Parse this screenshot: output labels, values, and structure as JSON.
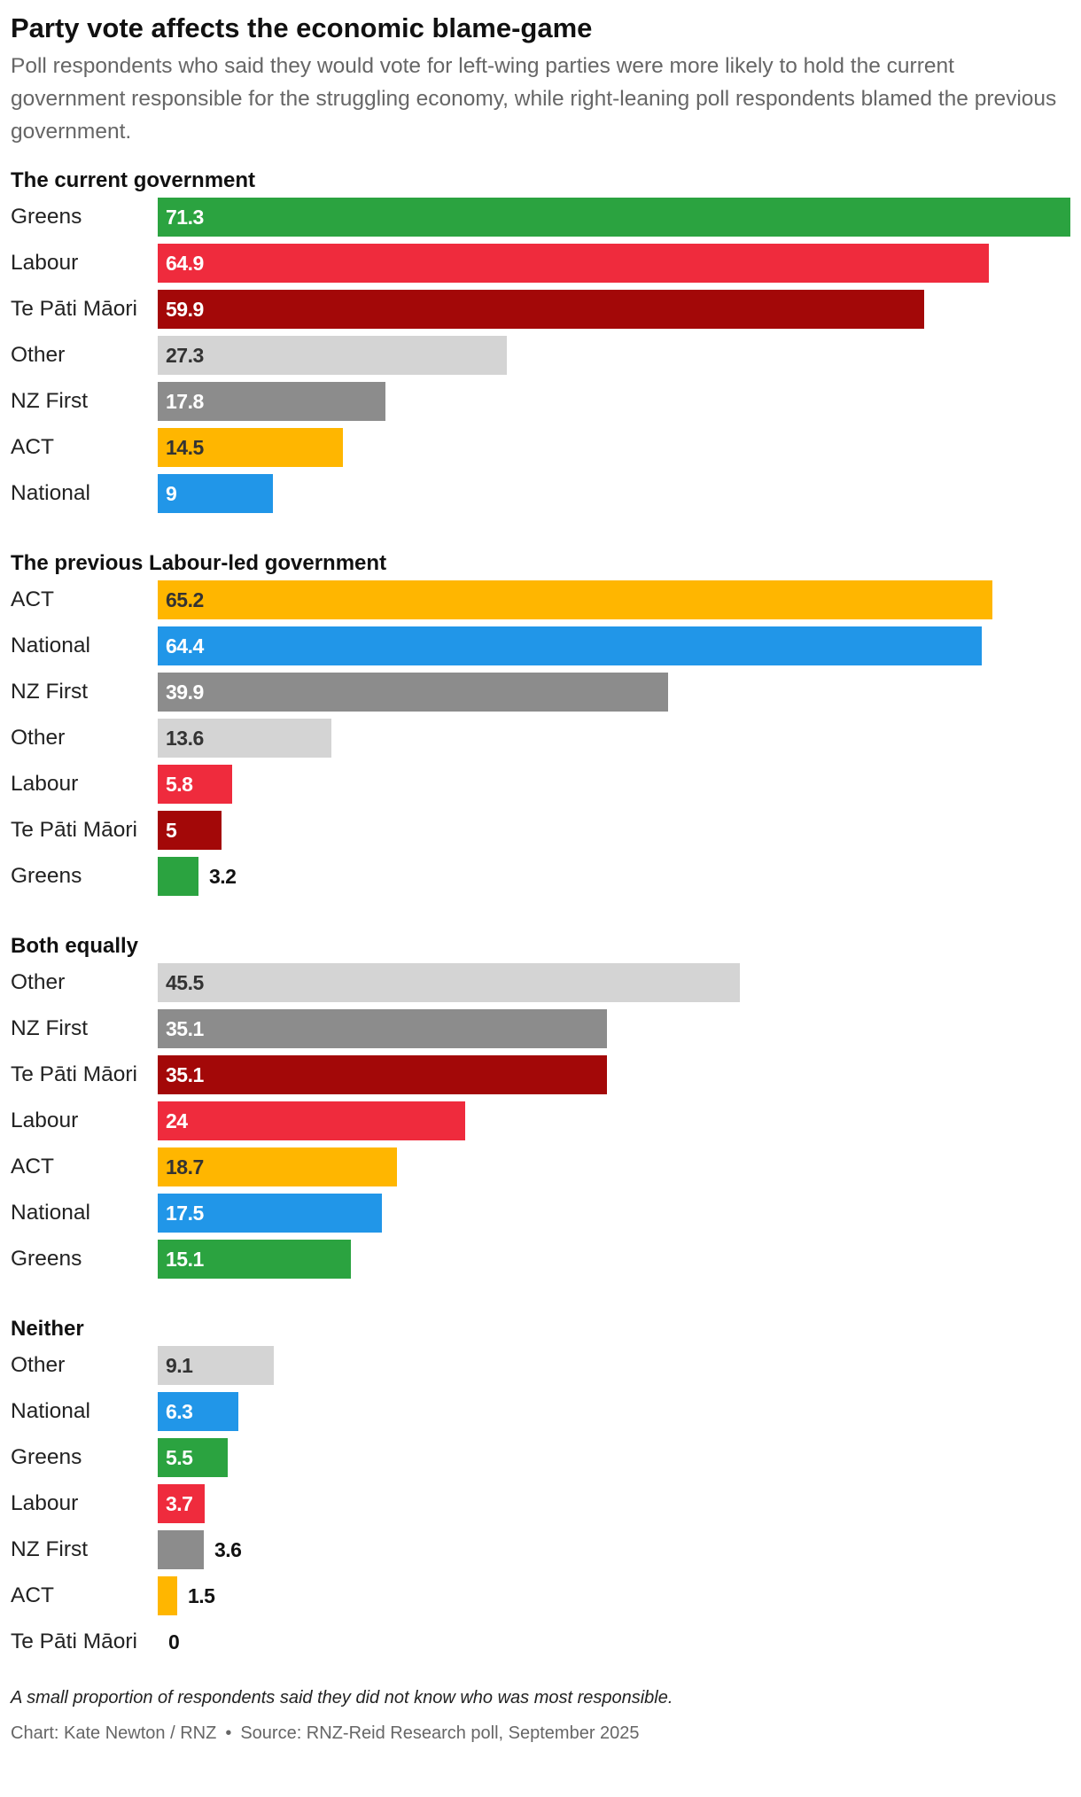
{
  "title": "Party vote affects the economic blame-game",
  "subtitle": "Poll respondents who said they would vote for left-wing parties were more likely to hold the current government responsible for the struggling economy, while right-leaning poll respondents blamed the previous government.",
  "note": "A small proportion of respondents said they did not know who was most responsible.",
  "footer": {
    "chart_credit": "Chart: Kate Newton / RNZ",
    "separator": "•",
    "source": "Source: RNZ-Reid Research poll, September 2025"
  },
  "colors": {
    "Greens": "#2ba340",
    "Labour": "#ef2b3d",
    "Te Pāti Māori": "#a30808",
    "Other": "#d4d4d4",
    "NZ First": "#8c8c8c",
    "ACT": "#ffb600",
    "National": "#2196e8"
  },
  "chart_data": {
    "type": "bar",
    "orientation": "horizontal",
    "xlim": [
      0,
      71.3
    ],
    "panels": [
      {
        "title": "The current government",
        "categories": [
          "Greens",
          "Labour",
          "Te Pāti Māori",
          "Other",
          "NZ First",
          "ACT",
          "National"
        ],
        "values": [
          71.3,
          64.9,
          59.9,
          27.3,
          17.8,
          14.5,
          9
        ],
        "labels": [
          "71.3",
          "64.9",
          "59.9",
          "27.3",
          "17.8",
          "14.5",
          "9"
        ]
      },
      {
        "title": "The previous Labour-led government",
        "categories": [
          "ACT",
          "National",
          "NZ First",
          "Other",
          "Labour",
          "Te Pāti Māori",
          "Greens"
        ],
        "values": [
          65.2,
          64.4,
          39.9,
          13.6,
          5.8,
          5,
          3.2
        ],
        "labels": [
          "65.2",
          "64.4",
          "39.9",
          "13.6",
          "5.8",
          "5",
          "3.2"
        ]
      },
      {
        "title": "Both equally",
        "categories": [
          "Other",
          "NZ First",
          "Te Pāti Māori",
          "Labour",
          "ACT",
          "National",
          "Greens"
        ],
        "values": [
          45.5,
          35.1,
          35.1,
          24,
          18.7,
          17.5,
          15.1
        ],
        "labels": [
          "45.5",
          "35.1",
          "35.1",
          "24",
          "18.7",
          "17.5",
          "15.1"
        ]
      },
      {
        "title": "Neither",
        "categories": [
          "Other",
          "National",
          "Greens",
          "Labour",
          "NZ First",
          "ACT",
          "Te Pāti Māori"
        ],
        "values": [
          9.1,
          6.3,
          5.5,
          3.7,
          3.6,
          1.5,
          0
        ],
        "labels": [
          "9.1",
          "6.3",
          "5.5",
          "3.7",
          "3.6",
          "1.5",
          "0"
        ]
      }
    ]
  }
}
